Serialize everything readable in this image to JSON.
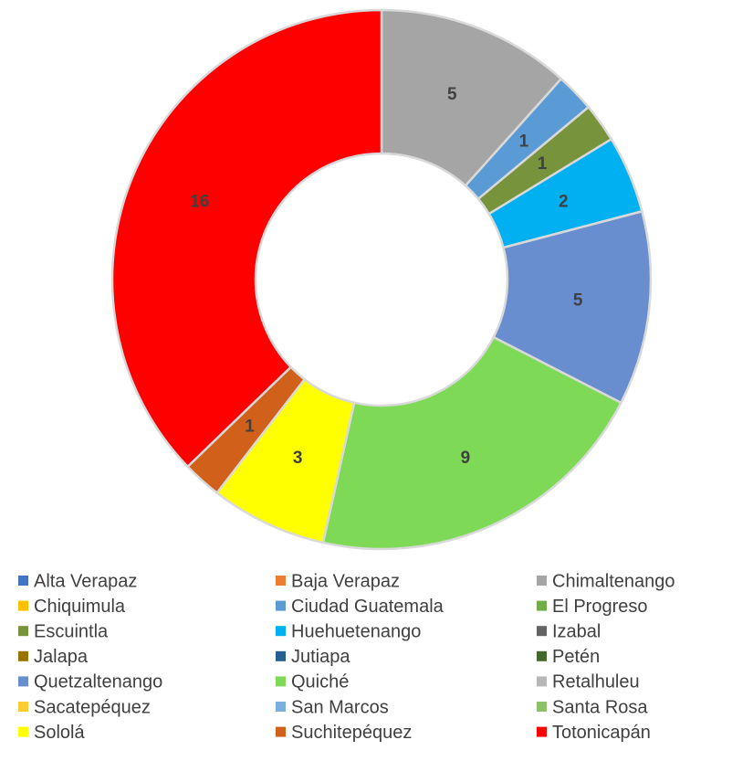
{
  "chart_data": {
    "type": "pie",
    "donut": true,
    "categories": [
      "Alta Verapaz",
      "Baja Verapaz",
      "Chimaltenango",
      "Chiquimula",
      "Ciudad Guatemala",
      "El Progreso",
      "Escuintla",
      "Huehuetenango",
      "Izabal",
      "Jalapa",
      "Jutiapa",
      "Petén",
      "Quetzaltenango",
      "Quiché",
      "Retalhuleu",
      "Sacatepéquez",
      "San Marcos",
      "Santa Rosa",
      "Sololá",
      "Suchitepéquez",
      "Totonicapán"
    ],
    "values": [
      0,
      0,
      5,
      0,
      1,
      0,
      1,
      2,
      0,
      0,
      0,
      0,
      5,
      9,
      0,
      0,
      0,
      0,
      3,
      1,
      16
    ],
    "colors": [
      "#4472c4",
      "#ed7d31",
      "#a5a5a5",
      "#ffc000",
      "#5b9bd5",
      "#70ad47",
      "#77933c",
      "#00b0f0",
      "#636363",
      "#997300",
      "#255e91",
      "#43682b",
      "#698ed0",
      "#7ed957",
      "#b7b7b7",
      "#ffcd33",
      "#7cafdd",
      "#8cc168",
      "#ffff00",
      "#d0601a",
      "#ff0000"
    ],
    "legend": "bottom"
  }
}
